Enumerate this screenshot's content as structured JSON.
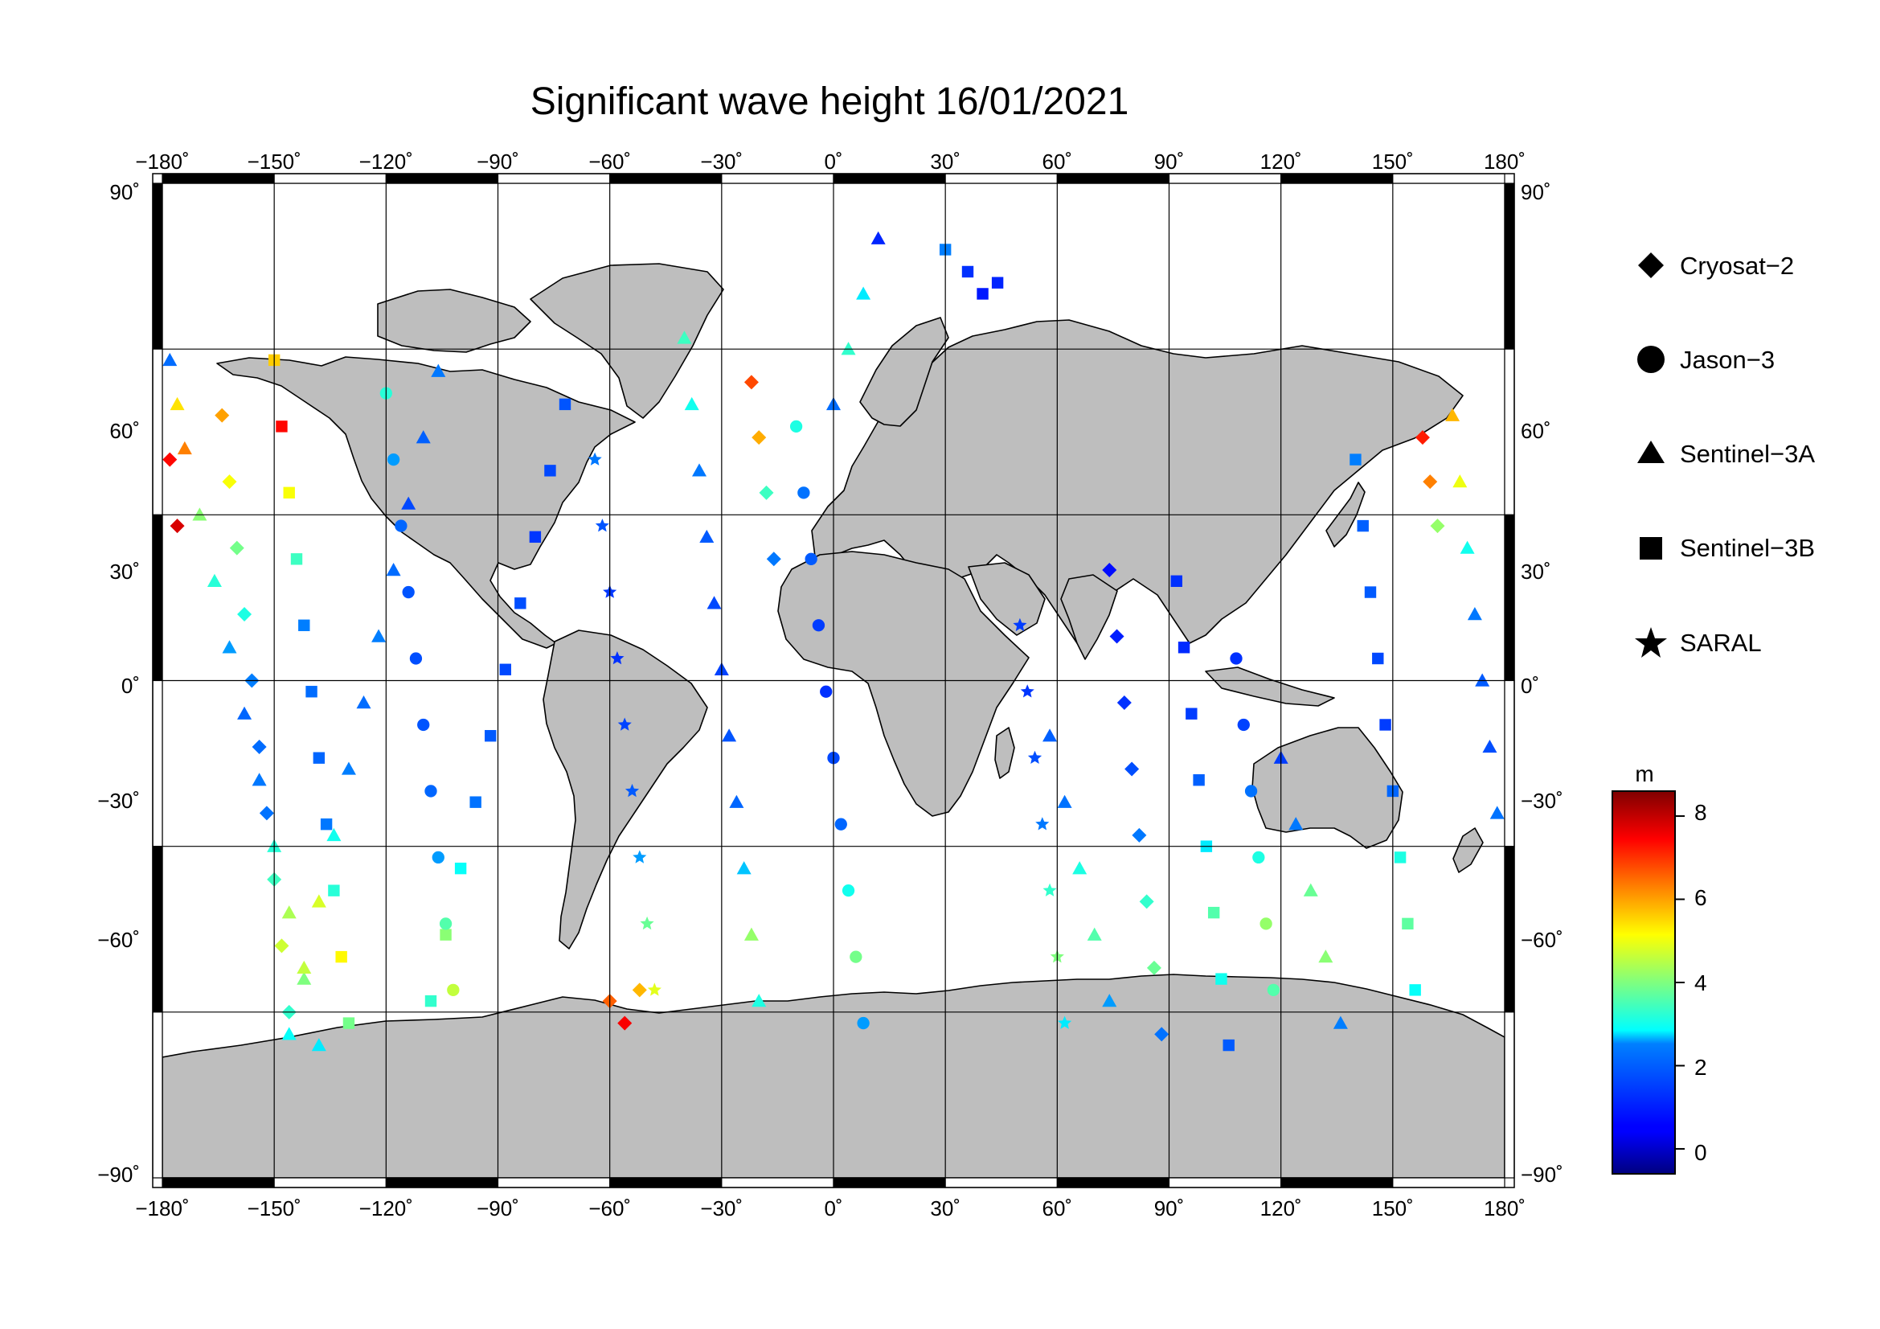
{
  "map": {
    "title": "Significant wave height 16/01/2021",
    "lon_ticks": [
      "−180˚",
      "−150˚",
      "−120˚",
      "−90˚",
      "−60˚",
      "−30˚",
      "0˚",
      "30˚",
      "60˚",
      "90˚",
      "120˚",
      "150˚",
      "180˚"
    ],
    "lat_ticks": [
      "90˚",
      "60˚",
      "30˚",
      "0˚",
      "−30˚",
      "−60˚",
      "−90˚"
    ],
    "projection": "equirectangular",
    "lon_range": [
      -180,
      180
    ],
    "lat_range": [
      -90,
      90
    ],
    "land_color": "#bebebe",
    "ocean_color": "#ffffff"
  },
  "legend": {
    "items": [
      {
        "label": "Cryosat−2",
        "marker": "diamond"
      },
      {
        "label": "Jason−3",
        "marker": "circle"
      },
      {
        "label": "Sentinel−3A",
        "marker": "triangle"
      },
      {
        "label": "Sentinel−3B",
        "marker": "square"
      },
      {
        "label": "SARAL",
        "marker": "star"
      }
    ]
  },
  "colorbar": {
    "unit": "m",
    "ticks": [
      "8",
      "6",
      "4",
      "2",
      "0"
    ],
    "range": [
      -0.6,
      8.6
    ],
    "colormap": "jet"
  },
  "chart_data": {
    "type": "scatter",
    "title": "Significant wave height 16/01/2021",
    "xlim": [
      -180,
      180
    ],
    "ylim": [
      -90,
      90
    ],
    "x_tick_values": [
      -180,
      -150,
      -120,
      -90,
      -60,
      -30,
      0,
      30,
      60,
      90,
      120,
      150,
      180
    ],
    "y_tick_values": [
      90,
      60,
      30,
      0,
      -30,
      -60,
      -90
    ],
    "grid": true,
    "legend_position": "right",
    "colorbar_position": "right",
    "value_label": "m",
    "series": [
      {
        "name": "Sentinel−3A",
        "marker": "triangle",
        "points": [
          [
            -178,
            58,
            2.2
          ],
          [
            -176,
            50,
            5.4
          ],
          [
            -174,
            42,
            6.3
          ],
          [
            -170,
            30,
            4.1
          ],
          [
            -166,
            18,
            3.2
          ],
          [
            -162,
            6,
            2.6
          ],
          [
            -158,
            -6,
            2.1
          ],
          [
            -154,
            -18,
            2.4
          ],
          [
            -150,
            -30,
            3.2
          ],
          [
            -146,
            -42,
            4.4
          ],
          [
            -142,
            -54,
            4.0
          ],
          [
            -138,
            -66,
            2.8
          ],
          [
            -106,
            56,
            2.4
          ],
          [
            -110,
            44,
            2.0
          ],
          [
            -114,
            32,
            1.6
          ],
          [
            -118,
            20,
            2.2
          ],
          [
            -122,
            8,
            2.5
          ],
          [
            -126,
            -4,
            2.2
          ],
          [
            -130,
            -16,
            2.5
          ],
          [
            -134,
            -28,
            3.0
          ],
          [
            -138,
            -40,
            4.8
          ],
          [
            -142,
            -52,
            4.6
          ],
          [
            -146,
            -64,
            2.9
          ],
          [
            -40,
            62,
            3.4
          ],
          [
            -38,
            50,
            3.0
          ],
          [
            -36,
            38,
            2.4
          ],
          [
            -34,
            26,
            1.9
          ],
          [
            -32,
            14,
            1.6
          ],
          [
            -30,
            2,
            1.5
          ],
          [
            -28,
            -10,
            1.8
          ],
          [
            -26,
            -22,
            2.1
          ],
          [
            -24,
            -34,
            2.7
          ],
          [
            -22,
            -46,
            4.2
          ],
          [
            -20,
            -58,
            3.1
          ],
          [
            12,
            80,
            1.0
          ],
          [
            8,
            70,
            2.8
          ],
          [
            4,
            60,
            3.3
          ],
          [
            0,
            50,
            2.2
          ],
          [
            58,
            -10,
            2.0
          ],
          [
            62,
            -22,
            2.3
          ],
          [
            66,
            -34,
            3.1
          ],
          [
            70,
            -46,
            3.6
          ],
          [
            74,
            -58,
            2.6
          ],
          [
            120,
            -14,
            1.4
          ],
          [
            124,
            -26,
            2.4
          ],
          [
            128,
            -38,
            3.8
          ],
          [
            132,
            -50,
            4.1
          ],
          [
            136,
            -62,
            2.5
          ],
          [
            166,
            48,
            5.8
          ],
          [
            168,
            36,
            5.0
          ],
          [
            170,
            24,
            3.0
          ],
          [
            172,
            12,
            2.4
          ],
          [
            174,
            0,
            1.9
          ],
          [
            176,
            -12,
            1.7
          ],
          [
            178,
            -24,
            2.3
          ]
        ]
      },
      {
        "name": "Sentinel−3B",
        "marker": "square",
        "points": [
          [
            -150,
            58,
            5.6
          ],
          [
            -148,
            46,
            7.4
          ],
          [
            -146,
            34,
            5.1
          ],
          [
            -144,
            22,
            3.4
          ],
          [
            -142,
            10,
            2.5
          ],
          [
            -140,
            -2,
            2.2
          ],
          [
            -138,
            -14,
            2.1
          ],
          [
            -136,
            -26,
            2.4
          ],
          [
            -134,
            -38,
            3.2
          ],
          [
            -132,
            -50,
            5.2
          ],
          [
            -130,
            -62,
            3.9
          ],
          [
            -72,
            50,
            1.8
          ],
          [
            -76,
            38,
            1.6
          ],
          [
            -80,
            26,
            1.3
          ],
          [
            -84,
            14,
            1.7
          ],
          [
            -88,
            2,
            1.6
          ],
          [
            -92,
            -10,
            1.9
          ],
          [
            -96,
            -22,
            2.3
          ],
          [
            -100,
            -34,
            2.9
          ],
          [
            -104,
            -46,
            4.1
          ],
          [
            -108,
            -58,
            3.3
          ],
          [
            30,
            78,
            2.5
          ],
          [
            36,
            74,
            1.2
          ],
          [
            40,
            70,
            0.8
          ],
          [
            44,
            72,
            1.0
          ],
          [
            92,
            18,
            1.2
          ],
          [
            94,
            6,
            1.1
          ],
          [
            96,
            -6,
            1.4
          ],
          [
            98,
            -18,
            2.0
          ],
          [
            100,
            -30,
            2.8
          ],
          [
            102,
            -42,
            3.6
          ],
          [
            104,
            -54,
            3.0
          ],
          [
            106,
            -66,
            1.9
          ],
          [
            140,
            40,
            2.5
          ],
          [
            142,
            28,
            2.0
          ],
          [
            144,
            16,
            1.9
          ],
          [
            146,
            4,
            1.6
          ],
          [
            148,
            -8,
            1.4
          ],
          [
            150,
            -20,
            2.1
          ],
          [
            152,
            -32,
            3.1
          ],
          [
            154,
            -44,
            3.7
          ],
          [
            156,
            -56,
            2.9
          ]
        ]
      },
      {
        "name": "Cryosat−2",
        "marker": "diamond",
        "points": [
          [
            -178,
            40,
            7.4
          ],
          [
            -176,
            28,
            7.8
          ],
          [
            -164,
            48,
            6.0
          ],
          [
            -162,
            36,
            5.1
          ],
          [
            -160,
            24,
            3.9
          ],
          [
            -158,
            12,
            3.1
          ],
          [
            -156,
            0,
            2.5
          ],
          [
            -154,
            -12,
            2.2
          ],
          [
            -152,
            -24,
            2.3
          ],
          [
            -150,
            -36,
            3.4
          ],
          [
            -148,
            -48,
            4.7
          ],
          [
            -146,
            -60,
            3.3
          ],
          [
            -60,
            -58,
            6.6
          ],
          [
            -56,
            -62,
            7.5
          ],
          [
            -52,
            -56,
            5.8
          ],
          [
            -22,
            54,
            6.8
          ],
          [
            -20,
            44,
            5.9
          ],
          [
            -18,
            34,
            3.4
          ],
          [
            -16,
            22,
            2.4
          ],
          [
            74,
            20,
            0.6
          ],
          [
            76,
            8,
            0.9
          ],
          [
            78,
            -4,
            1.2
          ],
          [
            80,
            -16,
            1.7
          ],
          [
            82,
            -28,
            2.4
          ],
          [
            84,
            -40,
            3.3
          ],
          [
            86,
            -52,
            3.8
          ],
          [
            88,
            -64,
            2.3
          ],
          [
            158,
            44,
            7.2
          ],
          [
            160,
            36,
            6.3
          ],
          [
            162,
            28,
            4.2
          ]
        ]
      },
      {
        "name": "Jason−3",
        "marker": "circle",
        "points": [
          [
            -120,
            52,
            3.2
          ],
          [
            -118,
            40,
            2.6
          ],
          [
            -116,
            28,
            2.1
          ],
          [
            -114,
            16,
            1.8
          ],
          [
            -112,
            4,
            1.7
          ],
          [
            -110,
            -8,
            1.8
          ],
          [
            -108,
            -20,
            2.1
          ],
          [
            -106,
            -32,
            2.6
          ],
          [
            -104,
            -44,
            3.6
          ],
          [
            -102,
            -56,
            4.6
          ],
          [
            -10,
            46,
            3.1
          ],
          [
            -8,
            34,
            2.3
          ],
          [
            -6,
            22,
            1.9
          ],
          [
            -4,
            10,
            1.4
          ],
          [
            -2,
            -2,
            1.2
          ],
          [
            0,
            -14,
            1.6
          ],
          [
            2,
            -26,
            2.1
          ],
          [
            4,
            -38,
            3.0
          ],
          [
            6,
            -50,
            3.9
          ],
          [
            8,
            -62,
            2.6
          ],
          [
            108,
            4,
            1.2
          ],
          [
            110,
            -8,
            1.5
          ],
          [
            112,
            -20,
            2.3
          ],
          [
            114,
            -32,
            3.1
          ],
          [
            116,
            -44,
            4.2
          ],
          [
            118,
            -56,
            3.6
          ]
        ]
      },
      {
        "name": "SARAL",
        "marker": "star",
        "points": [
          [
            -64,
            40,
            2.4
          ],
          [
            -62,
            28,
            1.8
          ],
          [
            -60,
            16,
            1.3
          ],
          [
            -58,
            4,
            1.2
          ],
          [
            -56,
            -8,
            1.5
          ],
          [
            -54,
            -20,
            1.9
          ],
          [
            -52,
            -32,
            2.6
          ],
          [
            -50,
            -44,
            3.8
          ],
          [
            -48,
            -56,
            4.9
          ],
          [
            50,
            10,
            1.4
          ],
          [
            52,
            -2,
            1.3
          ],
          [
            54,
            -14,
            1.7
          ],
          [
            56,
            -26,
            2.4
          ],
          [
            58,
            -38,
            3.3
          ],
          [
            60,
            -50,
            4.0
          ],
          [
            62,
            -62,
            2.8
          ]
        ]
      }
    ]
  }
}
